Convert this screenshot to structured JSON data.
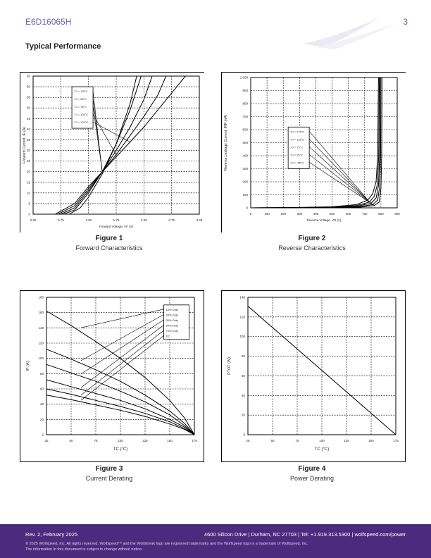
{
  "header": {
    "part_number": "E6D16065H",
    "page_number": "3"
  },
  "section_title": "Typical Performance",
  "figures": [
    {
      "label": "Figure 1",
      "caption": "Forward Characteristics"
    },
    {
      "label": "Figure 2",
      "caption": "Reverse Characteristics"
    },
    {
      "label": "Figure 3",
      "caption": "Current Derating"
    },
    {
      "label": "Figure 4",
      "caption": "Power Derating"
    }
  ],
  "chart_data": [
    {
      "type": "line",
      "xlabel": "Forward Voltage, VF (V)",
      "ylabel": "Forward Current, IF (A)",
      "xlim": [
        0.25,
        3.25
      ],
      "ylim": [
        0,
        65
      ],
      "xticks": [
        "0.25",
        "0.75",
        "1.25",
        "1.75",
        "2.25",
        "2.75",
        "3.25"
      ],
      "yticks": [
        "0",
        "5",
        "10",
        "15",
        "20",
        "25",
        "30",
        "35",
        "40",
        "45",
        "50",
        "55",
        "60",
        "65"
      ],
      "legend": [
        "TJ = -55°C",
        "TJ = 25°C",
        "TJ = 75°C",
        "TJ = 125°C",
        "TJ = 175°C"
      ],
      "legend_position": "top-left",
      "grid": true,
      "series": [
        {
          "name": "TJ = -55°C",
          "x": [
            0.25,
            0.9,
            1.1,
            1.25,
            1.5,
            1.75,
            2.0,
            2.12
          ],
          "y": [
            0,
            0,
            3,
            8,
            19,
            33,
            52,
            65
          ]
        },
        {
          "name": "TJ = 25°C",
          "x": [
            0.25,
            0.8,
            1.0,
            1.25,
            1.5,
            1.75,
            2.0,
            2.2
          ],
          "y": [
            0,
            0,
            2,
            10,
            20,
            33,
            49,
            65
          ]
        },
        {
          "name": "TJ = 75°C",
          "x": [
            0.25,
            0.75,
            1.0,
            1.25,
            1.5,
            1.75,
            2.0,
            2.25,
            2.4
          ],
          "y": [
            0,
            0,
            3,
            11,
            20,
            30,
            41,
            54,
            65
          ]
        },
        {
          "name": "TJ = 125°C",
          "x": [
            0.25,
            0.7,
            1.0,
            1.25,
            1.5,
            1.75,
            2.0,
            2.25,
            2.5,
            2.65
          ],
          "y": [
            0,
            0,
            4,
            12,
            20,
            28,
            37,
            46,
            56,
            65
          ]
        },
        {
          "name": "TJ = 175°C",
          "x": [
            0.25,
            0.65,
            1.0,
            1.25,
            1.5,
            1.75,
            2.0,
            2.25,
            2.5,
            2.75,
            3.0
          ],
          "y": [
            0,
            0,
            5,
            13,
            20,
            27,
            34,
            41,
            49,
            57,
            65
          ]
        }
      ]
    },
    {
      "type": "line",
      "xlabel": "Reverse Voltage, VR (V)",
      "ylabel": "Reverse Leakage Current, IRR (nA)",
      "xlim": [
        0,
        900
      ],
      "ylim": [
        0,
        1000
      ],
      "xticks": [
        "0",
        "100",
        "200",
        "300",
        "400",
        "500",
        "600",
        "700",
        "800",
        "900"
      ],
      "yticks": [
        "0",
        "100",
        "200",
        "300",
        "400",
        "500",
        "600",
        "700",
        "800",
        "900",
        "1,000"
      ],
      "legend": [
        "TJ = 175°C",
        "TJ = 125°C",
        "TJ = 75°C",
        "TJ = 25°C",
        "TJ = -55°C"
      ],
      "legend_position": "center-left",
      "grid": true,
      "series": [
        {
          "name": "TJ = 175°C",
          "x": [
            0,
            300,
            500,
            650,
            720,
            750,
            770,
            780,
            785
          ],
          "y": [
            0,
            3,
            8,
            25,
            60,
            110,
            200,
            400,
            1000
          ]
        },
        {
          "name": "TJ = 125°C",
          "x": [
            0,
            300,
            500,
            650,
            730,
            760,
            778,
            786,
            790
          ],
          "y": [
            0,
            2,
            6,
            18,
            45,
            90,
            180,
            400,
            1000
          ]
        },
        {
          "name": "TJ = 75°C",
          "x": [
            0,
            300,
            500,
            650,
            740,
            770,
            785,
            792,
            795
          ],
          "y": [
            0,
            1,
            4,
            12,
            35,
            75,
            170,
            400,
            1000
          ]
        },
        {
          "name": "TJ = 25°C",
          "x": [
            0,
            300,
            500,
            660,
            750,
            780,
            792,
            798,
            800
          ],
          "y": [
            0,
            1,
            3,
            8,
            25,
            60,
            160,
            400,
            1000
          ]
        },
        {
          "name": "TJ = -55°C",
          "x": [
            0,
            300,
            500,
            670,
            760,
            790,
            800,
            805,
            807
          ],
          "y": [
            0,
            0,
            2,
            5,
            18,
            45,
            150,
            400,
            1000
          ]
        }
      ]
    },
    {
      "type": "line",
      "xlabel": "TC (°C)",
      "ylabel": "IF (A)",
      "xlim": [
        25,
        175
      ],
      "ylim": [
        0,
        180
      ],
      "xticks": [
        "25",
        "50",
        "75",
        "100",
        "125",
        "150",
        "175"
      ],
      "yticks": [
        "0",
        "20",
        "40",
        "60",
        "80",
        "100",
        "120",
        "140",
        "160",
        "180"
      ],
      "legend": [
        "10% Duty",
        "20% Duty",
        "30% Duty",
        "50% Duty",
        "70% Duty",
        "DC"
      ],
      "legend_position": "top-right",
      "grid": true,
      "series": [
        {
          "name": "10% Duty",
          "x": [
            25,
            50,
            75,
            100,
            125,
            150,
            165,
            175
          ],
          "y": [
            162,
            143,
            122,
            100,
            75,
            45,
            22,
            0
          ]
        },
        {
          "name": "20% Duty",
          "x": [
            25,
            50,
            75,
            100,
            125,
            150,
            165,
            175
          ],
          "y": [
            112,
            99,
            85,
            70,
            52,
            31,
            15,
            0
          ]
        },
        {
          "name": "30% Duty",
          "x": [
            25,
            50,
            75,
            100,
            125,
            150,
            165,
            175
          ],
          "y": [
            92,
            81,
            70,
            57,
            43,
            26,
            12,
            0
          ]
        },
        {
          "name": "50% Duty",
          "x": [
            25,
            50,
            75,
            100,
            125,
            150,
            165,
            175
          ],
          "y": [
            72,
            63,
            54,
            45,
            34,
            20,
            10,
            0
          ]
        },
        {
          "name": "70% Duty",
          "x": [
            25,
            50,
            75,
            100,
            125,
            150,
            165,
            175
          ],
          "y": [
            60,
            53,
            45,
            37,
            28,
            17,
            8,
            0
          ]
        },
        {
          "name": "DC",
          "x": [
            25,
            50,
            75,
            100,
            125,
            150,
            165,
            175
          ],
          "y": [
            52,
            46,
            39,
            32,
            24,
            14,
            7,
            0
          ]
        }
      ]
    },
    {
      "type": "line",
      "xlabel": "TC (°C)",
      "ylabel": "PTOT (W)",
      "xlim": [
        25,
        175
      ],
      "ylim": [
        0,
        140
      ],
      "xticks": [
        "25",
        "50",
        "75",
        "100",
        "125",
        "150",
        "175"
      ],
      "yticks": [
        "0",
        "20",
        "40",
        "60",
        "80",
        "100",
        "120",
        "140"
      ],
      "grid": true,
      "series": [
        {
          "name": "",
          "x": [
            25,
            175
          ],
          "y": [
            131,
            0
          ]
        }
      ]
    }
  ],
  "footer": {
    "revision": "Rev. 2, February 2025",
    "address": "4600 Silicon Drive | Durham, NC 27703 | Tel: +1.919.313.5300 | wolfspeed.com/power",
    "legal_1": "© 2025 Wolfspeed, Inc. All rights reserved. Wolfspeed™ and the Wolfstreak logo are registered trademarks and the Wolfspeed logo is a trademark of Wolfspeed, Inc.",
    "legal_2": "The information in this document is subject to change without notice."
  }
}
